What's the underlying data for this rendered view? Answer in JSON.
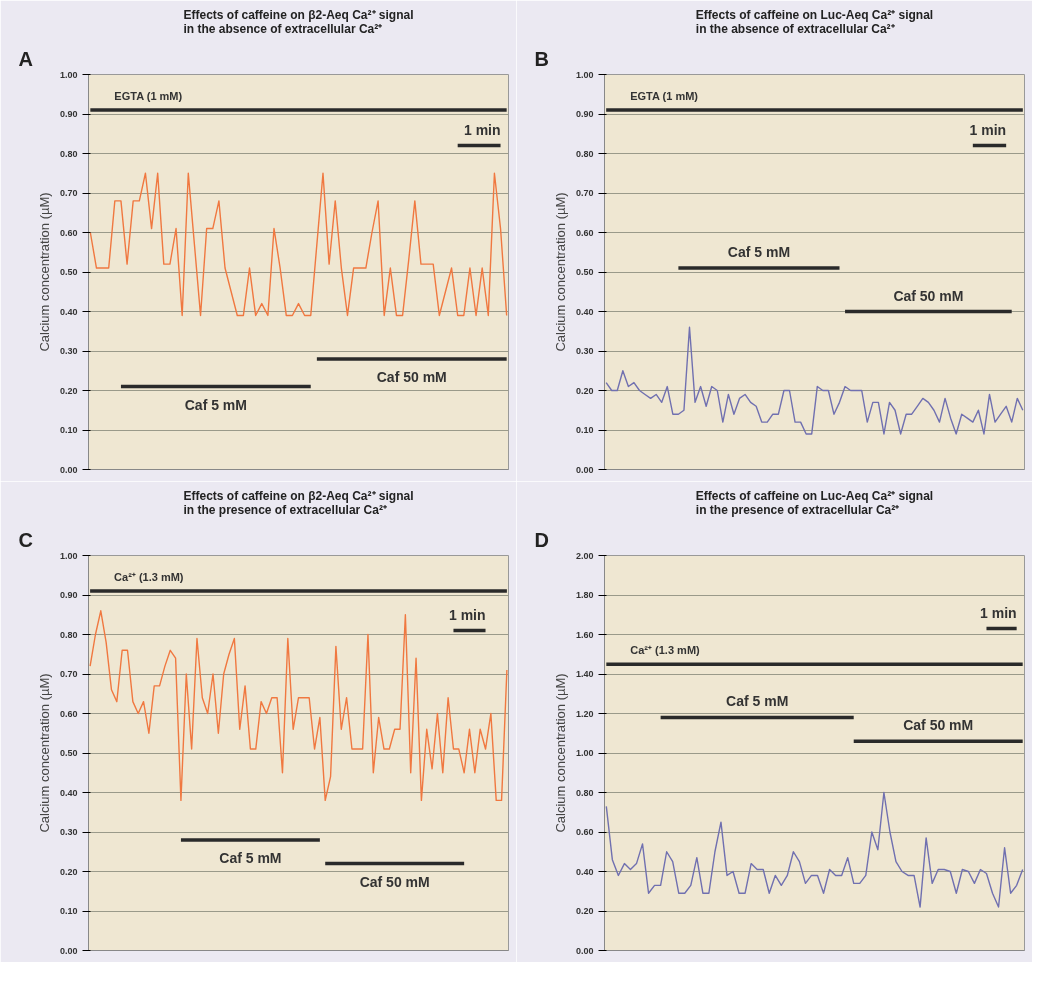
{
  "chart_data": [
    {
      "type": "line",
      "title": "Effects of caffeine on β2-Aeq Ca²⁺ signal\nin the absence of extracellular Ca²⁺",
      "ylabel": "Calcium concentration (µM)",
      "annotations": [
        "A"
      ],
      "categories": [
        null,
        null,
        null,
        null,
        null,
        null,
        null,
        null,
        null,
        null,
        null,
        null,
        null,
        null,
        null,
        null,
        null,
        null,
        null,
        null,
        null,
        null,
        null,
        null,
        null,
        null,
        null,
        null,
        null,
        null,
        null,
        null,
        null,
        null,
        null,
        null,
        null,
        null,
        null,
        null,
        null,
        null,
        null,
        null,
        null,
        null,
        null,
        null,
        null,
        null,
        null,
        null,
        null,
        null,
        null,
        null,
        null,
        null,
        null,
        null,
        null,
        null,
        null,
        null,
        null,
        null,
        null,
        null,
        null
      ],
      "series": [
        {
          "color": "#f07840",
          "values": [
            0.6,
            0.51,
            0.51,
            0.51,
            0.68,
            0.68,
            0.52,
            0.68,
            0.68,
            0.75,
            0.61,
            0.75,
            0.52,
            0.52,
            0.61,
            0.39,
            0.75,
            0.57,
            0.39,
            0.61,
            0.61,
            0.68,
            0.51,
            0.45,
            0.39,
            0.39,
            0.51,
            0.39,
            0.42,
            0.39,
            0.61,
            0.51,
            0.39,
            0.39,
            0.42,
            0.39,
            0.39,
            0.57,
            0.75,
            0.52,
            0.68,
            0.51,
            0.39,
            0.51,
            0.51,
            0.51,
            0.6,
            0.68,
            0.39,
            0.51,
            0.39,
            0.39,
            0.53,
            0.68,
            0.52,
            0.52,
            0.52,
            0.39,
            0.45,
            0.51,
            0.39,
            0.39,
            0.51,
            0.39,
            0.51,
            0.39,
            0.75,
            0.61,
            0.39
          ]
        },
        {
          "name": "EGTA (1 mM)",
          "color": "#2a2a2a",
          "values": [
            0.91,
            0.91,
            0.91,
            0.91,
            0.91,
            0.91,
            0.91,
            0.91,
            0.91,
            0.91,
            0.91,
            0.91,
            0.91,
            0.91,
            0.91,
            0.91,
            0.91,
            0.91,
            0.91,
            0.91,
            0.91,
            0.91,
            0.91,
            0.91,
            0.91,
            0.91,
            0.91,
            0.91,
            0.91,
            0.91,
            0.91,
            0.91,
            0.91,
            0.91,
            0.91,
            0.91,
            0.91,
            0.91,
            0.91,
            0.91,
            0.91,
            0.91,
            0.91,
            0.91,
            0.91,
            0.91,
            0.91,
            0.91,
            0.91,
            0.91,
            0.91,
            0.91,
            0.91,
            0.91,
            0.91,
            0.91,
            0.91,
            0.91,
            0.91,
            0.91,
            0.91,
            0.91,
            0.91,
            0.91,
            0.91,
            0.91,
            0.91,
            0.91,
            0.91
          ]
        },
        {
          "name": "Caf 5 mM",
          "color": "#2a2a2a",
          "values": [
            null,
            null,
            null,
            null,
            null,
            0.21,
            0.21,
            0.21,
            0.21,
            0.21,
            0.21,
            0.21,
            0.21,
            0.21,
            0.21,
            0.21,
            0.21,
            0.21,
            0.21,
            0.21,
            0.21,
            0.21,
            0.21,
            0.21,
            0.21,
            0.21,
            0.21,
            0.21,
            0.21,
            0.21,
            0.21,
            0.21,
            0.21,
            0.21,
            0.21,
            0.21,
            0.21,
            null,
            null,
            null,
            null,
            null,
            null,
            null,
            null,
            null,
            null,
            null,
            null,
            null,
            null,
            null,
            null,
            null,
            null,
            null,
            null,
            null,
            null,
            null,
            null,
            null,
            null,
            null,
            null,
            null,
            null,
            null,
            null
          ]
        },
        {
          "name": "Caf 50 mM",
          "color": "#2a2a2a",
          "values": [
            null,
            null,
            null,
            null,
            null,
            null,
            null,
            null,
            null,
            null,
            null,
            null,
            null,
            null,
            null,
            null,
            null,
            null,
            null,
            null,
            null,
            null,
            null,
            null,
            null,
            null,
            null,
            null,
            null,
            null,
            null,
            null,
            null,
            null,
            null,
            null,
            null,
            0.28,
            0.28,
            0.28,
            0.28,
            0.28,
            0.28,
            0.28,
            0.28,
            0.28,
            0.28,
            0.28,
            0.28,
            0.28,
            0.28,
            0.28,
            0.28,
            0.28,
            0.28,
            0.28,
            0.28,
            0.28,
            0.28,
            0.28,
            0.28,
            0.28,
            0.28,
            0.28,
            0.28,
            0.28,
            0.28,
            0.28,
            0.28
          ]
        },
        {
          "name": "1 min",
          "color": "#2a2a2a",
          "values": [
            null,
            null,
            null,
            null,
            null,
            null,
            null,
            null,
            null,
            null,
            null,
            null,
            null,
            null,
            null,
            null,
            null,
            null,
            null,
            null,
            null,
            null,
            null,
            null,
            null,
            null,
            null,
            null,
            null,
            null,
            null,
            null,
            null,
            null,
            null,
            null,
            null,
            null,
            null,
            null,
            null,
            null,
            null,
            null,
            null,
            null,
            null,
            null,
            null,
            null,
            null,
            null,
            null,
            null,
            null,
            null,
            null,
            null,
            null,
            null,
            0.82,
            0.82,
            0.82,
            0.82,
            0.82,
            0.82,
            0.82,
            0.82,
            null
          ]
        }
      ],
      "ylim": [
        0,
        1
      ],
      "yticks": [
        {
          "value": 0,
          "label": "0.00"
        },
        {
          "value": 0.1,
          "label": "0.10"
        },
        {
          "value": 0.2,
          "label": "0.20"
        },
        {
          "value": 0.3,
          "label": "0.30"
        },
        {
          "value": 0.4,
          "label": "0.40"
        },
        {
          "value": 0.5,
          "label": "0.50"
        },
        {
          "value": 0.6,
          "label": "0.60"
        },
        {
          "value": 0.7,
          "label": "0.70"
        },
        {
          "value": 0.8,
          "label": "0.80"
        },
        {
          "value": 0.9,
          "label": "0.90"
        },
        {
          "value": 1,
          "label": "1.00"
        }
      ],
      "grid": "y",
      "tick_labels": "y"
    },
    {
      "type": "line",
      "title": "Effects of caffeine on Luc-Aeq Ca²⁺ signal\nin the absence of extracellular Ca²⁺",
      "ylabel": "Calcium concentration (µM)",
      "annotations": [
        "B"
      ],
      "categories": [
        null,
        null,
        null,
        null,
        null,
        null,
        null,
        null,
        null,
        null,
        null,
        null,
        null,
        null,
        null,
        null,
        null,
        null,
        null,
        null,
        null,
        null,
        null,
        null,
        null,
        null,
        null,
        null,
        null,
        null,
        null,
        null,
        null,
        null,
        null,
        null,
        null,
        null,
        null,
        null,
        null,
        null,
        null,
        null,
        null,
        null,
        null,
        null,
        null,
        null,
        null,
        null,
        null,
        null,
        null,
        null,
        null,
        null,
        null,
        null,
        null,
        null,
        null,
        null,
        null,
        null,
        null,
        null,
        null,
        null,
        null,
        null,
        null,
        null,
        null,
        null
      ],
      "series": [
        {
          "color": "#7070b0",
          "values": [
            0.22,
            0.2,
            0.2,
            0.25,
            0.21,
            0.22,
            0.2,
            0.19,
            0.18,
            0.19,
            0.17,
            0.21,
            0.14,
            0.14,
            0.15,
            0.36,
            0.17,
            0.21,
            0.16,
            0.21,
            0.2,
            0.12,
            0.19,
            0.14,
            0.18,
            0.19,
            0.17,
            0.16,
            0.12,
            0.12,
            0.14,
            0.14,
            0.2,
            0.2,
            0.12,
            0.12,
            0.09,
            0.09,
            0.21,
            0.2,
            0.2,
            0.14,
            0.17,
            0.21,
            0.2,
            0.2,
            0.2,
            0.12,
            0.17,
            0.17,
            0.09,
            0.17,
            0.15,
            0.09,
            0.14,
            0.14,
            0.16,
            0.18,
            0.17,
            0.15,
            0.12,
            0.18,
            0.13,
            0.09,
            0.14,
            0.13,
            0.12,
            0.15,
            0.09,
            0.19,
            0.12,
            0.14,
            0.16,
            0.12,
            0.18,
            0.15
          ]
        },
        {
          "name": "EGTA (1 mM)",
          "color": "#2a2a2a",
          "values": [
            0.91,
            0.91,
            0.91,
            0.91,
            0.91,
            0.91,
            0.91,
            0.91,
            0.91,
            0.91,
            0.91,
            0.91,
            0.91,
            0.91,
            0.91,
            0.91,
            0.91,
            0.91,
            0.91,
            0.91,
            0.91,
            0.91,
            0.91,
            0.91,
            0.91,
            0.91,
            0.91,
            0.91,
            0.91,
            0.91,
            0.91,
            0.91,
            0.91,
            0.91,
            0.91,
            0.91,
            0.91,
            0.91,
            0.91,
            0.91,
            0.91,
            0.91,
            0.91,
            0.91,
            0.91,
            0.91,
            0.91,
            0.91,
            0.91,
            0.91,
            0.91,
            0.91,
            0.91,
            0.91,
            0.91,
            0.91,
            0.91,
            0.91,
            0.91,
            0.91,
            0.91,
            0.91,
            0.91,
            0.91,
            0.91,
            0.91,
            0.91,
            0.91,
            0.91,
            0.91,
            0.91,
            0.91,
            0.91,
            0.91,
            0.91,
            0.91
          ]
        },
        {
          "name": "Caf 5 mM",
          "color": "#2a2a2a",
          "values": [
            null,
            null,
            null,
            null,
            null,
            null,
            null,
            null,
            null,
            null,
            null,
            null,
            null,
            0.51,
            0.51,
            0.51,
            0.51,
            0.51,
            0.51,
            0.51,
            0.51,
            0.51,
            0.51,
            0.51,
            0.51,
            0.51,
            0.51,
            0.51,
            0.51,
            0.51,
            0.51,
            0.51,
            0.51,
            0.51,
            0.51,
            0.51,
            0.51,
            0.51,
            0.51,
            0.51,
            0.51,
            0.51,
            0.51,
            null,
            null,
            null,
            null,
            null,
            null,
            null,
            null,
            null,
            null,
            null,
            null,
            null,
            null,
            null,
            null,
            null,
            null,
            null,
            null,
            null,
            null,
            null,
            null,
            null,
            null,
            null,
            null,
            null,
            null,
            null,
            null,
            null
          ]
        },
        {
          "name": "Caf 50 mM",
          "color": "#2a2a2a",
          "values": [
            null,
            null,
            null,
            null,
            null,
            null,
            null,
            null,
            null,
            null,
            null,
            null,
            null,
            null,
            null,
            null,
            null,
            null,
            null,
            null,
            null,
            null,
            null,
            null,
            null,
            null,
            null,
            null,
            null,
            null,
            null,
            null,
            null,
            null,
            null,
            null,
            null,
            null,
            null,
            null,
            null,
            null,
            null,
            0.4,
            0.4,
            0.4,
            0.4,
            0.4,
            0.4,
            0.4,
            0.4,
            0.4,
            0.4,
            0.4,
            0.4,
            0.4,
            0.4,
            0.4,
            0.4,
            0.4,
            0.4,
            0.4,
            0.4,
            0.4,
            0.4,
            0.4,
            0.4,
            0.4,
            0.4,
            0.4,
            0.4,
            0.4,
            0.4,
            0.4,
            null,
            null
          ]
        },
        {
          "name": "1 min",
          "color": "#2a2a2a",
          "values": [
            null,
            null,
            null,
            null,
            null,
            null,
            null,
            null,
            null,
            null,
            null,
            null,
            null,
            null,
            null,
            null,
            null,
            null,
            null,
            null,
            null,
            null,
            null,
            null,
            null,
            null,
            null,
            null,
            null,
            null,
            null,
            null,
            null,
            null,
            null,
            null,
            null,
            null,
            null,
            null,
            null,
            null,
            null,
            null,
            null,
            null,
            null,
            null,
            null,
            null,
            null,
            null,
            null,
            null,
            null,
            null,
            null,
            null,
            null,
            null,
            null,
            null,
            null,
            null,
            null,
            null,
            0.82,
            0.82,
            0.82,
            0.82,
            0.82,
            0.82,
            0.82,
            null,
            null,
            null
          ]
        }
      ],
      "ylim": [
        0,
        1
      ],
      "yticks": [
        {
          "value": 0,
          "label": "0.00"
        },
        {
          "value": 0.1,
          "label": "0.10"
        },
        {
          "value": 0.2,
          "label": "0.20"
        },
        {
          "value": 0.3,
          "label": "0.30"
        },
        {
          "value": 0.4,
          "label": "0.40"
        },
        {
          "value": 0.5,
          "label": "0.50"
        },
        {
          "value": 0.6,
          "label": "0.60"
        },
        {
          "value": 0.7,
          "label": "0.70"
        },
        {
          "value": 0.8,
          "label": "0.80"
        },
        {
          "value": 0.9,
          "label": "0.90"
        },
        {
          "value": 1,
          "label": "1.00"
        }
      ],
      "grid": "y",
      "tick_labels": "y"
    },
    {
      "type": "line",
      "title": "Effects of caffeine on β2-Aeq Ca²⁺ signal\nin the presence of extracellular Ca²⁺",
      "ylabel": "Calcium concentration (µM)",
      "annotations": [
        "C"
      ],
      "categories": [
        null,
        null,
        null,
        null,
        null,
        null,
        null,
        null,
        null,
        null,
        null,
        null,
        null,
        null,
        null,
        null,
        null,
        null,
        null,
        null,
        null,
        null,
        null,
        null,
        null,
        null,
        null,
        null,
        null,
        null,
        null,
        null,
        null,
        null,
        null,
        null,
        null,
        null,
        null,
        null,
        null,
        null,
        null,
        null,
        null,
        null,
        null,
        null,
        null,
        null,
        null,
        null,
        null,
        null,
        null,
        null,
        null,
        null,
        null,
        null,
        null,
        null,
        null,
        null,
        null,
        null,
        null,
        null,
        null,
        null,
        null,
        null,
        null,
        null,
        null,
        null,
        null,
        null,
        null
      ],
      "series": [
        {
          "color": "#f07840",
          "values": [
            0.72,
            0.8,
            0.86,
            0.78,
            0.66,
            0.63,
            0.76,
            0.76,
            0.63,
            0.6,
            0.63,
            0.55,
            0.67,
            0.67,
            0.72,
            0.76,
            0.74,
            0.38,
            0.7,
            0.51,
            0.79,
            0.64,
            0.6,
            0.7,
            0.55,
            0.7,
            0.75,
            0.79,
            0.56,
            0.67,
            0.51,
            0.51,
            0.63,
            0.6,
            0.64,
            0.64,
            0.45,
            0.79,
            0.56,
            0.64,
            0.64,
            0.64,
            0.51,
            0.59,
            0.38,
            0.44,
            0.77,
            0.56,
            0.64,
            0.51,
            0.51,
            0.51,
            0.8,
            0.45,
            0.59,
            0.51,
            0.51,
            0.56,
            0.56,
            0.85,
            0.45,
            0.74,
            0.38,
            0.56,
            0.46,
            0.6,
            0.45,
            0.64,
            0.51,
            0.51,
            0.45,
            0.56,
            0.45,
            0.56,
            0.51,
            0.6,
            0.38,
            0.38,
            0.71
          ]
        },
        {
          "name": "Ca²⁺ (1.3 mM)",
          "color": "#2a2a2a",
          "values": [
            0.91,
            0.91,
            0.91,
            0.91,
            0.91,
            0.91,
            0.91,
            0.91,
            0.91,
            0.91,
            0.91,
            0.91,
            0.91,
            0.91,
            0.91,
            0.91,
            0.91,
            0.91,
            0.91,
            0.91,
            0.91,
            0.91,
            0.91,
            0.91,
            0.91,
            0.91,
            0.91,
            0.91,
            0.91,
            0.91,
            0.91,
            0.91,
            0.91,
            0.91,
            0.91,
            0.91,
            0.91,
            0.91,
            0.91,
            0.91,
            0.91,
            0.91,
            0.91,
            0.91,
            0.91,
            0.91,
            0.91,
            0.91,
            0.91,
            0.91,
            0.91,
            0.91,
            0.91,
            0.91,
            0.91,
            0.91,
            0.91,
            0.91,
            0.91,
            0.91,
            0.91,
            0.91,
            0.91,
            0.91,
            0.91,
            0.91,
            0.91,
            0.91,
            0.91,
            0.91,
            0.91,
            0.91,
            0.91,
            0.91,
            0.91,
            0.91,
            0.91,
            0.91,
            0.91
          ]
        },
        {
          "name": "Caf 5 mM",
          "color": "#2a2a2a",
          "values": [
            null,
            null,
            null,
            null,
            null,
            null,
            null,
            null,
            null,
            null,
            null,
            null,
            null,
            null,
            null,
            null,
            null,
            0.28,
            0.28,
            0.28,
            0.28,
            0.28,
            0.28,
            0.28,
            0.28,
            0.28,
            0.28,
            0.28,
            0.28,
            0.28,
            0.28,
            0.28,
            0.28,
            0.28,
            0.28,
            0.28,
            0.28,
            0.28,
            0.28,
            0.28,
            0.28,
            0.28,
            0.28,
            0.28,
            null,
            null,
            null,
            null,
            null,
            null,
            null,
            null,
            null,
            null,
            null,
            null,
            null,
            null,
            null,
            null,
            null,
            null,
            null,
            null,
            null,
            null,
            null,
            null,
            null,
            null,
            null,
            null,
            null,
            null,
            null,
            null,
            null,
            null,
            null
          ]
        },
        {
          "name": "Caf 50 mM",
          "color": "#2a2a2a",
          "values": [
            null,
            null,
            null,
            null,
            null,
            null,
            null,
            null,
            null,
            null,
            null,
            null,
            null,
            null,
            null,
            null,
            null,
            null,
            null,
            null,
            null,
            null,
            null,
            null,
            null,
            null,
            null,
            null,
            null,
            null,
            null,
            null,
            null,
            null,
            null,
            null,
            null,
            null,
            null,
            null,
            null,
            null,
            null,
            null,
            0.22,
            0.22,
            0.22,
            0.22,
            0.22,
            0.22,
            0.22,
            0.22,
            0.22,
            0.22,
            0.22,
            0.22,
            0.22,
            0.22,
            0.22,
            0.22,
            0.22,
            0.22,
            0.22,
            0.22,
            0.22,
            0.22,
            0.22,
            0.22,
            0.22,
            0.22,
            0.22,
            null,
            null,
            null,
            null,
            null,
            null,
            null,
            null
          ]
        },
        {
          "name": "1 min",
          "color": "#2a2a2a",
          "values": [
            null,
            null,
            null,
            null,
            null,
            null,
            null,
            null,
            null,
            null,
            null,
            null,
            null,
            null,
            null,
            null,
            null,
            null,
            null,
            null,
            null,
            null,
            null,
            null,
            null,
            null,
            null,
            null,
            null,
            null,
            null,
            null,
            null,
            null,
            null,
            null,
            null,
            null,
            null,
            null,
            null,
            null,
            null,
            null,
            null,
            null,
            null,
            null,
            null,
            null,
            null,
            null,
            null,
            null,
            null,
            null,
            null,
            null,
            null,
            null,
            null,
            null,
            null,
            null,
            null,
            null,
            null,
            null,
            0.81,
            0.81,
            0.81,
            0.81,
            0.81,
            0.81,
            0.81,
            null,
            null,
            null,
            null
          ]
        }
      ],
      "ylim": [
        0,
        1
      ],
      "yticks": [
        {
          "value": 0,
          "label": "0.00"
        },
        {
          "value": 0.1,
          "label": "0.10"
        },
        {
          "value": 0.2,
          "label": "0.20"
        },
        {
          "value": 0.3,
          "label": "0.30"
        },
        {
          "value": 0.4,
          "label": "0.40"
        },
        {
          "value": 0.5,
          "label": "0.50"
        },
        {
          "value": 0.6,
          "label": "0.60"
        },
        {
          "value": 0.7,
          "label": "0.70"
        },
        {
          "value": 0.8,
          "label": "0.80"
        },
        {
          "value": 0.9,
          "label": "0.90"
        },
        {
          "value": 1,
          "label": "1.00"
        }
      ],
      "grid": "y",
      "tick_labels": "y"
    },
    {
      "type": "line",
      "title": "Effects of caffeine on Luc-Aeq Ca²⁺ signal\nin the presence of extracellular Ca²⁺",
      "ylabel": "Calcium concentration (µM)",
      "annotations": [
        "D"
      ],
      "categories": [
        null,
        null,
        null,
        null,
        null,
        null,
        null,
        null,
        null,
        null,
        null,
        null,
        null,
        null,
        null,
        null,
        null,
        null,
        null,
        null,
        null,
        null,
        null,
        null,
        null,
        null,
        null,
        null,
        null,
        null,
        null,
        null,
        null,
        null,
        null,
        null,
        null,
        null,
        null,
        null,
        null,
        null,
        null,
        null,
        null,
        null,
        null,
        null,
        null,
        null,
        null,
        null,
        null,
        null,
        null,
        null,
        null,
        null,
        null,
        null,
        null,
        null,
        null,
        null,
        null,
        null,
        null,
        null,
        null,
        null
      ],
      "series": [
        {
          "color": "#7070b0",
          "values": [
            0.73,
            0.46,
            0.38,
            0.44,
            0.41,
            0.44,
            0.54,
            0.29,
            0.33,
            0.33,
            0.5,
            0.45,
            0.29,
            0.29,
            0.33,
            0.47,
            0.29,
            0.29,
            0.5,
            0.65,
            0.38,
            0.4,
            0.29,
            0.29,
            0.44,
            0.41,
            0.41,
            0.29,
            0.38,
            0.33,
            0.38,
            0.5,
            0.45,
            0.34,
            0.38,
            0.38,
            0.29,
            0.41,
            0.38,
            0.38,
            0.47,
            0.34,
            0.34,
            0.38,
            0.6,
            0.51,
            0.8,
            0.6,
            0.45,
            0.4,
            0.38,
            0.38,
            0.22,
            0.57,
            0.34,
            0.41,
            0.41,
            0.4,
            0.29,
            0.41,
            0.4,
            0.34,
            0.41,
            0.39,
            0.29,
            0.22,
            0.52,
            0.29,
            0.33,
            0.41
          ]
        },
        {
          "name": "Ca²⁺ (1.3 mM)",
          "color": "#2a2a2a",
          "values": [
            1.45,
            1.45,
            1.45,
            1.45,
            1.45,
            1.45,
            1.45,
            1.45,
            1.45,
            1.45,
            1.45,
            1.45,
            1.45,
            1.45,
            1.45,
            1.45,
            1.45,
            1.45,
            1.45,
            1.45,
            1.45,
            1.45,
            1.45,
            1.45,
            1.45,
            1.45,
            1.45,
            1.45,
            1.45,
            1.45,
            1.45,
            1.45,
            1.45,
            1.45,
            1.45,
            1.45,
            1.45,
            1.45,
            1.45,
            1.45,
            1.45,
            1.45,
            1.45,
            1.45,
            1.45,
            1.45,
            1.45,
            1.45,
            1.45,
            1.45,
            1.45,
            1.45,
            1.45,
            1.45,
            1.45,
            1.45,
            1.45,
            1.45,
            1.45,
            1.45,
            1.45,
            1.45,
            1.45,
            1.45,
            1.45,
            1.45,
            1.45,
            1.45,
            1.45,
            1.45
          ]
        },
        {
          "name": "Caf 5 mM",
          "color": "#2a2a2a",
          "values": [
            null,
            null,
            null,
            null,
            null,
            null,
            null,
            null,
            null,
            1.18,
            1.18,
            1.18,
            1.18,
            1.18,
            1.18,
            1.18,
            1.18,
            1.18,
            1.18,
            1.18,
            1.18,
            1.18,
            1.18,
            1.18,
            1.18,
            1.18,
            1.18,
            1.18,
            1.18,
            1.18,
            1.18,
            1.18,
            1.18,
            1.18,
            1.18,
            1.18,
            1.18,
            1.18,
            1.18,
            1.18,
            1.18,
            1.18,
            null,
            null,
            null,
            null,
            null,
            null,
            null,
            null,
            null,
            null,
            null,
            null,
            null,
            null,
            null,
            null,
            null,
            null,
            null,
            null,
            null,
            null,
            null,
            null,
            null,
            null,
            null,
            null
          ]
        },
        {
          "name": "Caf 50 mM",
          "color": "#2a2a2a",
          "values": [
            null,
            null,
            null,
            null,
            null,
            null,
            null,
            null,
            null,
            null,
            null,
            null,
            null,
            null,
            null,
            null,
            null,
            null,
            null,
            null,
            null,
            null,
            null,
            null,
            null,
            null,
            null,
            null,
            null,
            null,
            null,
            null,
            null,
            null,
            null,
            null,
            null,
            null,
            null,
            null,
            null,
            1.06,
            1.06,
            1.06,
            1.06,
            1.06,
            1.06,
            1.06,
            1.06,
            1.06,
            1.06,
            1.06,
            1.06,
            1.06,
            1.06,
            1.06,
            1.06,
            1.06,
            1.06,
            1.06,
            1.06,
            1.06,
            1.06,
            1.06,
            1.06,
            1.06,
            1.06,
            1.06,
            1.06,
            1.06
          ]
        },
        {
          "name": "1 min",
          "color": "#2a2a2a",
          "values": [
            null,
            null,
            null,
            null,
            null,
            null,
            null,
            null,
            null,
            null,
            null,
            null,
            null,
            null,
            null,
            null,
            null,
            null,
            null,
            null,
            null,
            null,
            null,
            null,
            null,
            null,
            null,
            null,
            null,
            null,
            null,
            null,
            null,
            null,
            null,
            null,
            null,
            null,
            null,
            null,
            null,
            null,
            null,
            null,
            null,
            null,
            null,
            null,
            null,
            null,
            null,
            null,
            null,
            null,
            null,
            null,
            null,
            null,
            null,
            null,
            null,
            null,
            null,
            1.63,
            1.63,
            1.63,
            1.63,
            1.63,
            1.63,
            null
          ]
        }
      ],
      "ylim": [
        0,
        2
      ],
      "yticks": [
        {
          "value": 0,
          "label": "0.00"
        },
        {
          "value": 0.2,
          "label": "0.20"
        },
        {
          "value": 0.4,
          "label": "0.40"
        },
        {
          "value": 0.6,
          "label": "0.60"
        },
        {
          "value": 0.8,
          "label": "0.80"
        },
        {
          "value": 1,
          "label": "1.00"
        },
        {
          "value": 1.2,
          "label": "1.20"
        },
        {
          "value": 1.4,
          "label": "1.40"
        },
        {
          "value": 1.6,
          "label": "1.60"
        },
        {
          "value": 1.8,
          "label": "1.80"
        },
        {
          "value": 2,
          "label": "2.00"
        }
      ],
      "grid": "y",
      "tick_labels": "y"
    }
  ]
}
